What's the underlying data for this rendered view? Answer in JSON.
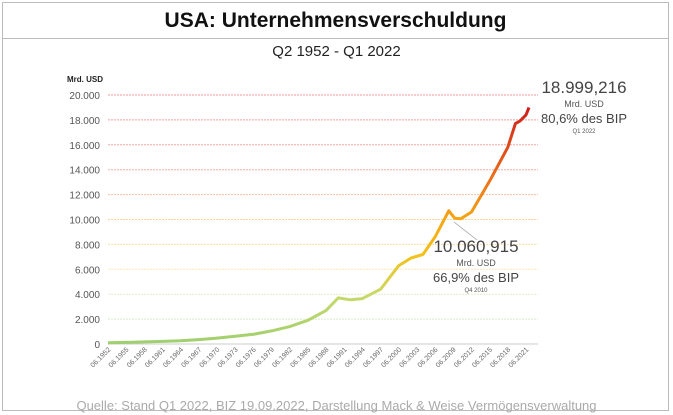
{
  "title": "USA: Unternehmensverschuldung",
  "source": "Quelle: Stand Q1 2022, BIZ 19.09.2022, Darstellung Mack & Weise Vermögensverwaltung",
  "chart_data": {
    "type": "line",
    "title": "Q2 1952 - Q1 2022",
    "ylabel": "Mrd. USD",
    "xlabel": "",
    "ylim": [
      0,
      20000
    ],
    "grid": true,
    "y_ticks": [
      "0",
      "2.000",
      "4.000",
      "6.000",
      "8.000",
      "10.000",
      "12.000",
      "14.000",
      "16.000",
      "18.000",
      "20.000"
    ],
    "x_ticks": [
      "06.1952",
      "06.1955",
      "06.1958",
      "06.1961",
      "06.1964",
      "06.1967",
      "06.1970",
      "06.1973",
      "06.1976",
      "06.1979",
      "06.1982",
      "06.1985",
      "06.1988",
      "06.1991",
      "06.1994",
      "06.1997",
      "06.2000",
      "06.2003",
      "06.2006",
      "06.2009",
      "06.2012",
      "06.2015",
      "06.2018",
      "06.2021"
    ],
    "series": [
      {
        "name": "Unternehmensverschuldung USA",
        "x": [
          1952.5,
          1955.5,
          1958.5,
          1961.5,
          1964.5,
          1967.5,
          1970.5,
          1973.5,
          1976.5,
          1979.5,
          1982.5,
          1985.5,
          1988.5,
          1990.5,
          1992.5,
          1994.5,
          1997.5,
          2000.5,
          2002.5,
          2004.5,
          2006.5,
          2008.75,
          2009.75,
          2010.75,
          2012.5,
          2015.5,
          2018.5,
          2019.75,
          2020.5,
          2021.5,
          2022.0
        ],
        "values": [
          100,
          130,
          170,
          210,
          260,
          350,
          470,
          620,
          780,
          1050,
          1400,
          1900,
          2700,
          3700,
          3550,
          3650,
          4400,
          6300,
          6900,
          7200,
          8600,
          10700,
          10100,
          10061,
          10600,
          13100,
          15800,
          17700,
          17900,
          18400,
          18999
        ]
      }
    ],
    "annotations": [
      {
        "value": "18.999,216",
        "unit": "Mrd. USD",
        "pct": "80,6% des BIP",
        "period": "Q1 2022"
      },
      {
        "value": "10.060,915",
        "unit": "Mrd. USD",
        "pct": "66,9% des BIP",
        "period": "Q4 2010"
      }
    ]
  }
}
